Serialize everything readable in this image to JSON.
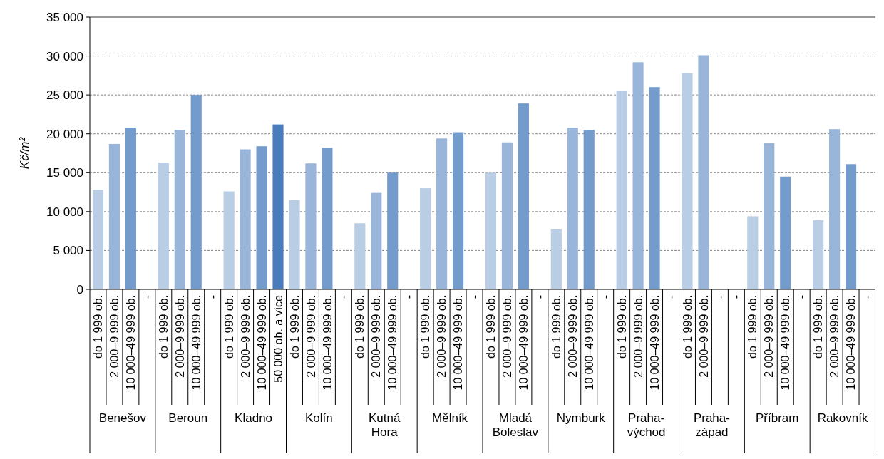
{
  "chart_data": {
    "type": "bar",
    "ylabel": "Kč/m²",
    "categories": [
      "do 1 999 ob.",
      "2 000–9 999 ob.",
      "10 000–49 999 ob.",
      "-",
      "do 1 999 ob.",
      "2 000–9 999 ob.",
      "10 000–49 999 ob.",
      "-",
      "do 1 999 ob.",
      "2 000–9 999 ob.",
      "10 000–49 999 ob.",
      "50 000 ob. a více",
      "do 1 999 ob.",
      "2 000–9 999 ob.",
      "10 000–49 999 ob.",
      "-",
      "do 1 999 ob.",
      "2 000–9 999 ob.",
      "10 000–49 999 ob.",
      "-",
      "do 1 999 ob.",
      "2 000–9 999 ob.",
      "10 000–49 999 ob.",
      "-",
      "do 1 999 ob.",
      "2 000–9 999 ob.",
      "10 000–49 999 ob.",
      "-",
      "do 1 999 ob.",
      "2 000–9 999 ob.",
      "10 000–49 999 ob.",
      "-",
      "do 1 999 ob.",
      "2 000–9 999 ob.",
      "10 000–49 999 ob.",
      "-",
      "do 1 999 ob.",
      "2 000–9 999 ob.",
      "-",
      "-",
      "do 1 999 ob.",
      "2 000–9 999 ob.",
      "10 000–49 999 ob.",
      "-",
      "do 1 999 ob.",
      "2 000–9 999 ob.",
      "10 000–49 999 ob.",
      "-"
    ],
    "values": [
      12800,
      18700,
      20800,
      null,
      16300,
      20500,
      25000,
      null,
      12600,
      18000,
      18400,
      21200,
      11500,
      16200,
      18200,
      null,
      8500,
      12400,
      15000,
      null,
      13000,
      19400,
      20200,
      null,
      15000,
      18900,
      23900,
      null,
      7700,
      20800,
      20500,
      null,
      25500,
      29200,
      26000,
      null,
      27800,
      30100,
      null,
      null,
      9400,
      18800,
      14500,
      null,
      8900,
      20600,
      16100,
      null
    ],
    "colors": [
      "#b9cde5",
      "#9ab5da",
      "#739ccd",
      null,
      "#b9cde5",
      "#9ab5da",
      "#739ccd",
      null,
      "#b9cde5",
      "#9ab5da",
      "#739ccd",
      "#4a7bba",
      "#b9cde5",
      "#9ab5da",
      "#739ccd",
      null,
      "#b9cde5",
      "#9ab5da",
      "#739ccd",
      null,
      "#b9cde5",
      "#9ab5da",
      "#739ccd",
      null,
      "#b9cde5",
      "#9ab5da",
      "#739ccd",
      null,
      "#b9cde5",
      "#9ab5da",
      "#739ccd",
      null,
      "#b9cde5",
      "#9ab5da",
      "#739ccd",
      null,
      "#b9cde5",
      "#9ab5da",
      null,
      null,
      "#b9cde5",
      "#9ab5da",
      "#739ccd",
      null,
      "#b9cde5",
      "#9ab5da",
      "#739ccd",
      null
    ],
    "annotations": [
      "Benešov",
      "Beroun",
      "Kladno",
      "Kolín",
      "Kutná Hora",
      "Mělník",
      "Mladá Boleslav",
      "Nymburk",
      "Praha-východ",
      "Praha-západ",
      "Příbram",
      "Rakovník"
    ],
    "ylim": [
      0,
      35000
    ],
    "yticks": [
      {
        "value": 0,
        "label": "0"
      },
      {
        "value": 5000,
        "label": "5 000"
      },
      {
        "value": 10000,
        "label": "10 000"
      },
      {
        "value": 15000,
        "label": "15 000"
      },
      {
        "value": 20000,
        "label": "20 000"
      },
      {
        "value": 25000,
        "label": "25 000"
      },
      {
        "value": 30000,
        "label": "30 000"
      },
      {
        "value": 35000,
        "label": "35 000"
      }
    ],
    "grid": "y"
  }
}
